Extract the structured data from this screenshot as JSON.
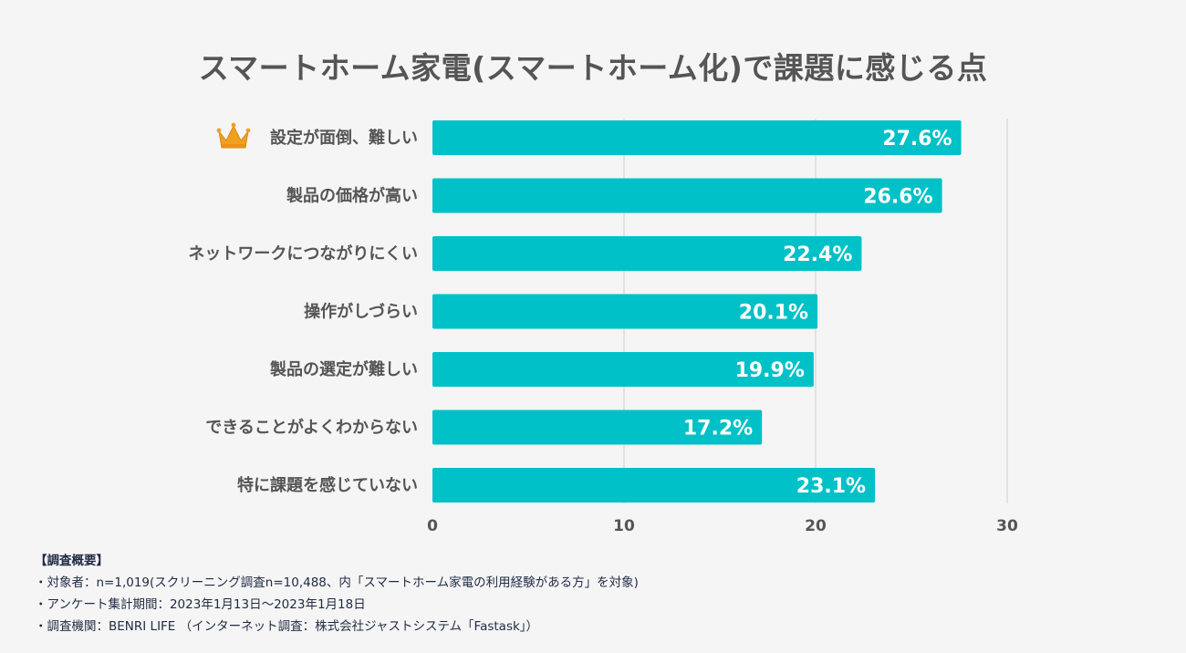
{
  "chart_data": {
    "type": "bar",
    "orientation": "horizontal",
    "title": "スマートホーム家電(スマートホーム化)で課題に感じる点",
    "categories": [
      "設定が面倒、難しい",
      "製品の価格が高い",
      "ネットワークにつながりにくい",
      "操作がしづらい",
      "製品の選定が難しい",
      "できることがよくわからない",
      "特に課題を感じていない"
    ],
    "values": [
      27.6,
      26.6,
      22.4,
      20.1,
      19.9,
      17.2,
      23.1
    ],
    "value_labels": [
      "27.6%",
      "26.6%",
      "22.4%",
      "20.1%",
      "19.9%",
      "17.2%",
      "23.1%"
    ],
    "xlim": [
      0,
      30
    ],
    "xticks": [
      "0",
      "10",
      "20",
      "30"
    ],
    "grid": true,
    "bar_color": "#00c1c7",
    "highlight": {
      "category_index": 0,
      "icon": "crown-icon",
      "color": "#f0a020"
    }
  },
  "notes": {
    "heading": "【調査概要】",
    "lines": [
      "・対象者：n=1,019(スクリーニング調査n=10,488、内「スマートホーム家電の利用経験がある方」を対象)",
      "・アンケート集計期間：2023年1月13日〜2023年1月18日",
      "・調査機関：BENRI LIFE （インターネット調査：株式会社ジャストシステム「Fastask」）"
    ]
  }
}
